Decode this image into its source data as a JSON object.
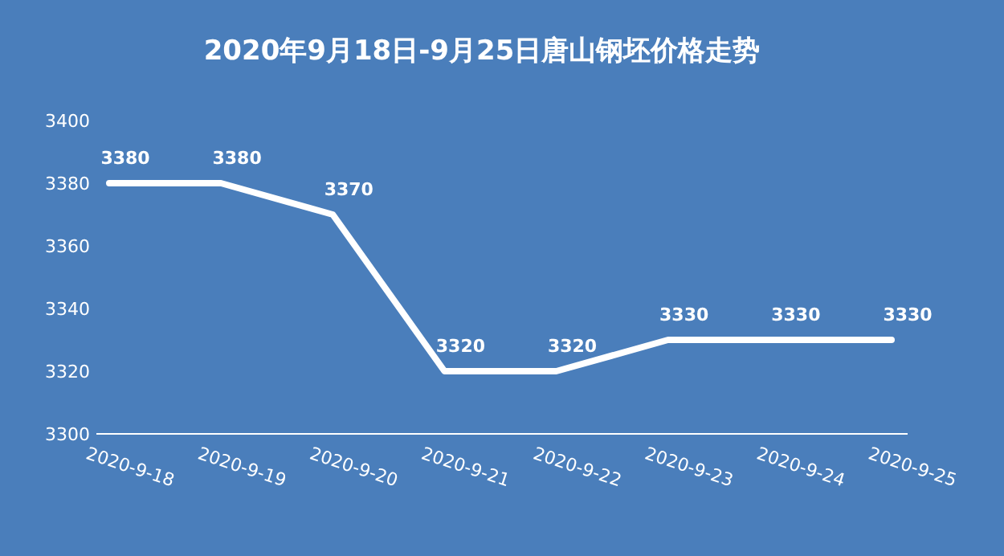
{
  "chart_data": {
    "type": "line",
    "title": "2020年9月18日-9月25日唐山钢坯价格走势",
    "categories": [
      "2020-9-18",
      "2020-9-19",
      "2020-9-20",
      "2020-9-21",
      "2020-9-22",
      "2020-9-23",
      "2020-9-24",
      "2020-9-25"
    ],
    "series": [
      {
        "color": "#ffffff",
        "values": [
          3380,
          3380,
          3370,
          3320,
          3320,
          3330,
          3330,
          3330
        ]
      }
    ],
    "ylim": [
      3300,
      3400
    ],
    "yticks": [
      3300,
      3320,
      3340,
      3360,
      3380,
      3400
    ],
    "data_labels": true,
    "grid": false,
    "marker": "none",
    "line_style": "solid"
  }
}
